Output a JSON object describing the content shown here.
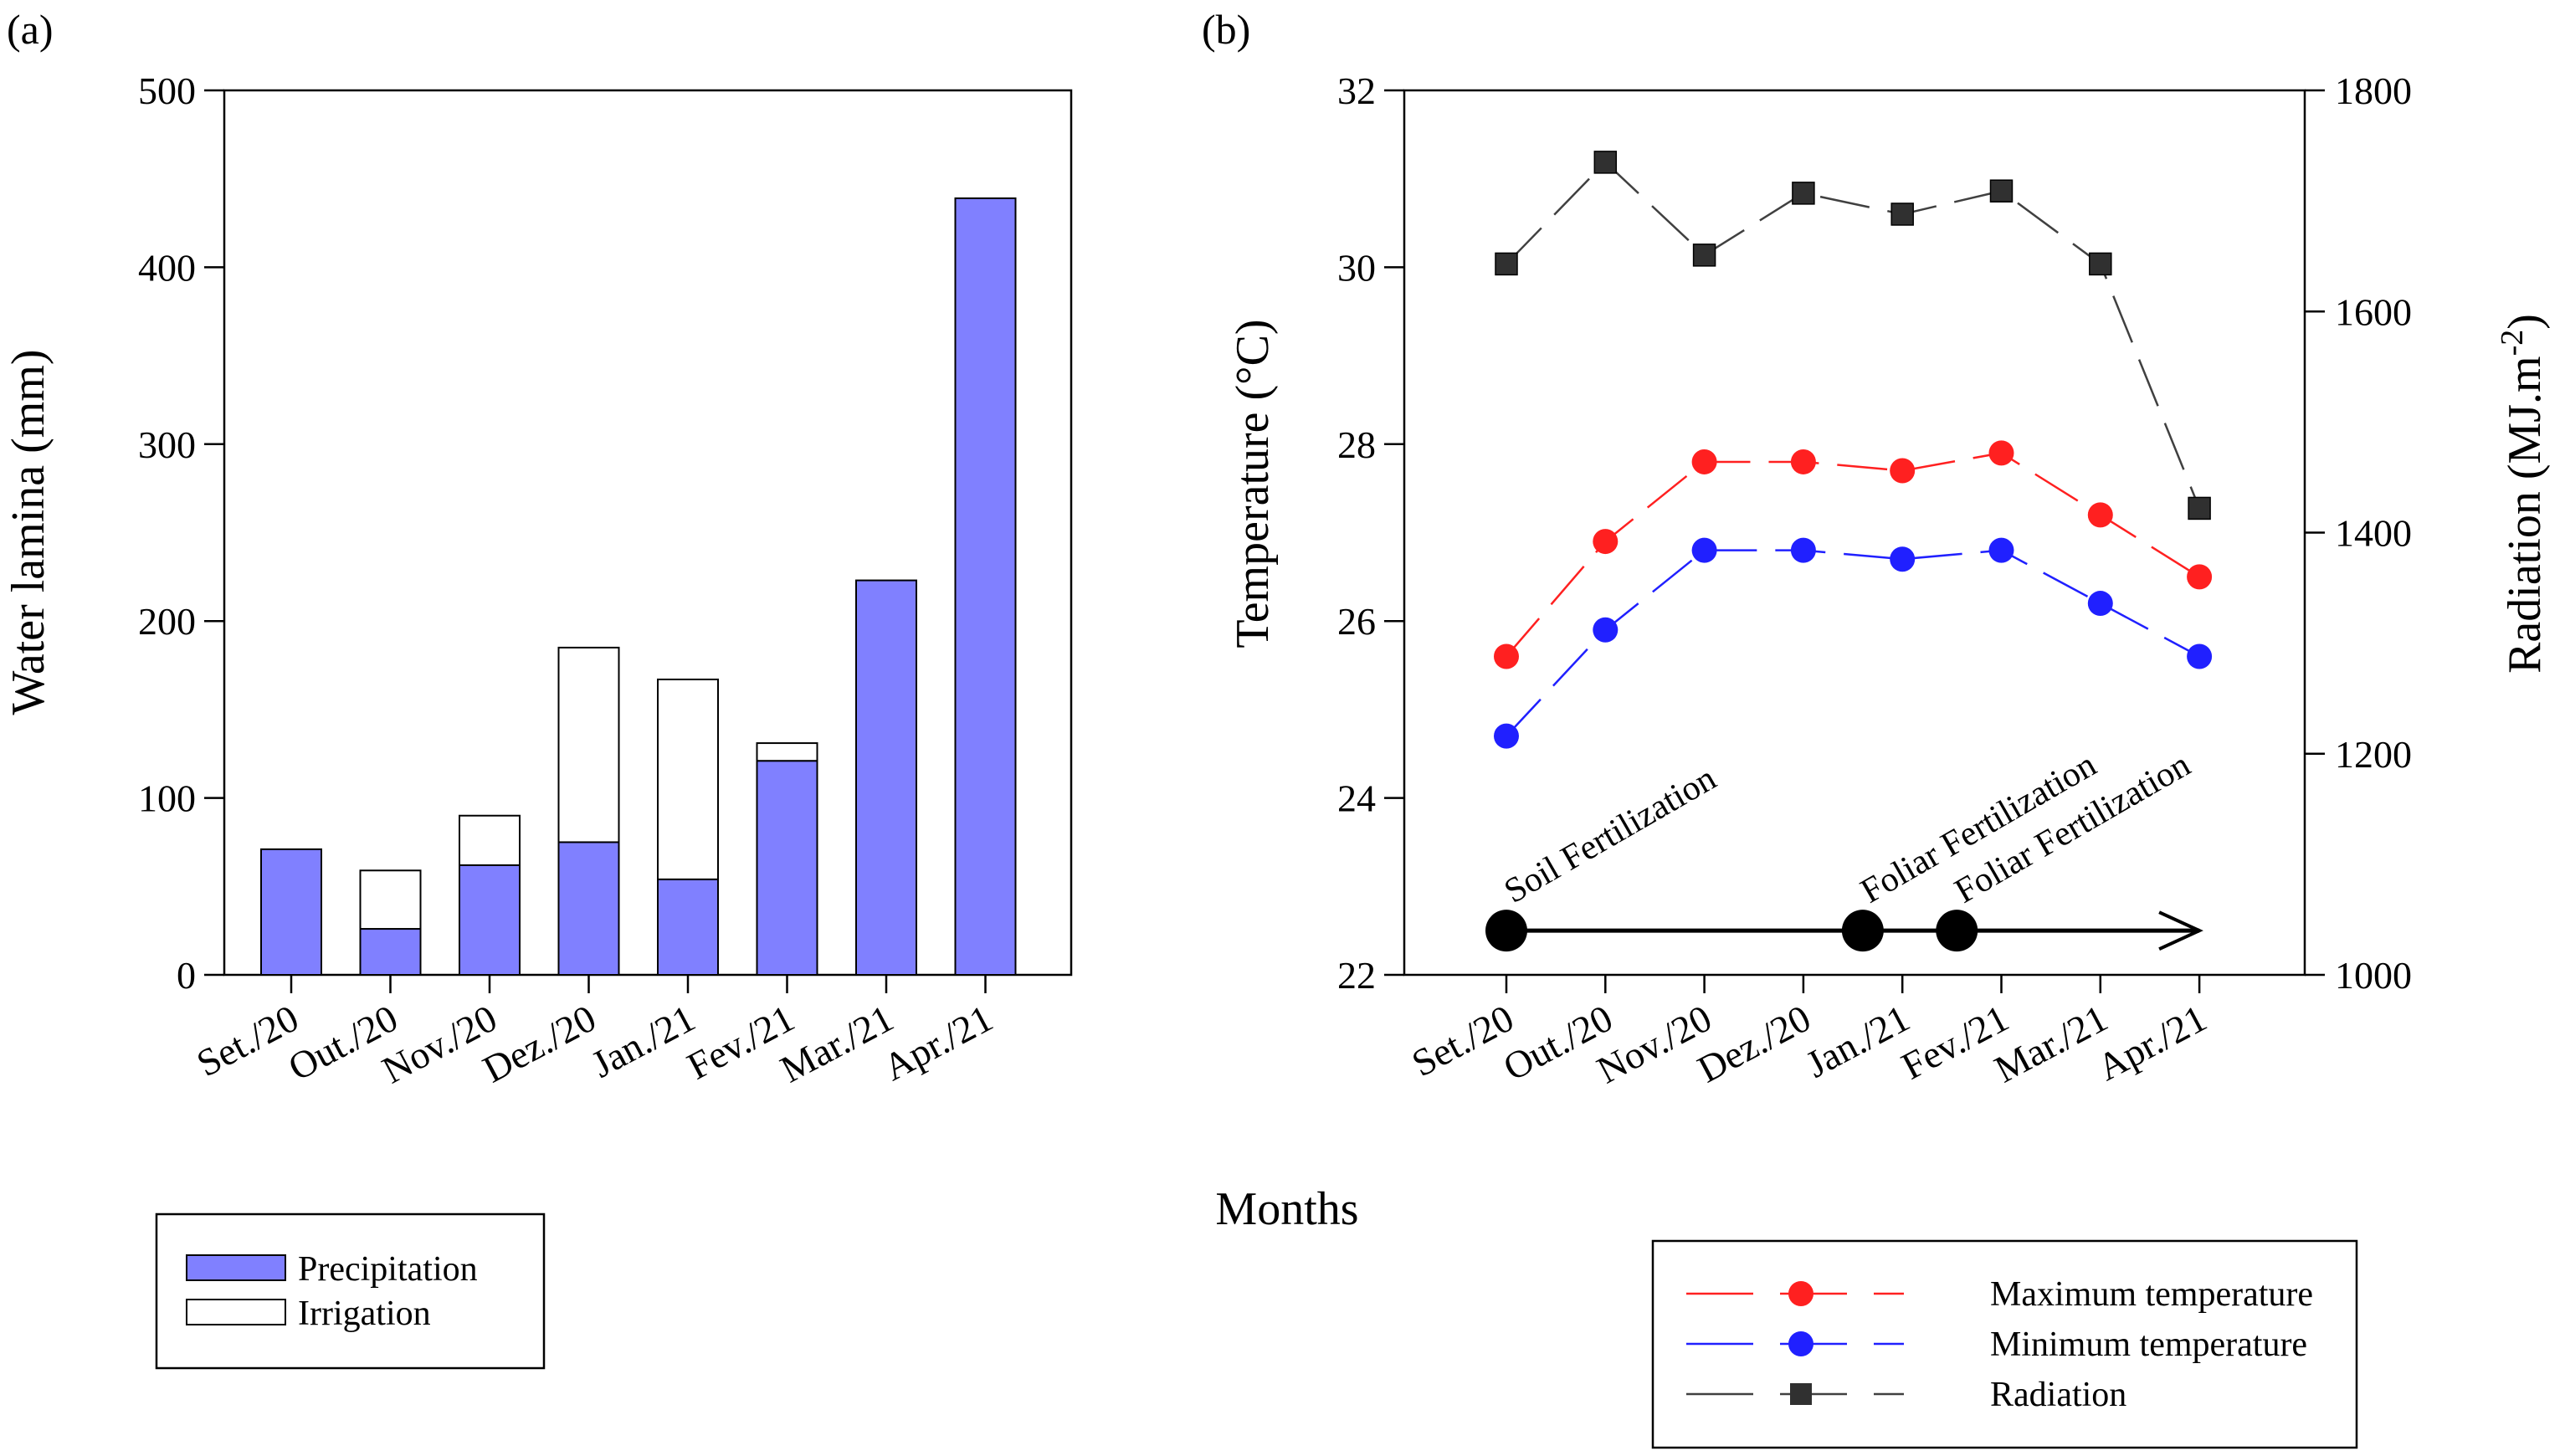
{
  "shared": {
    "xlabel": "Months",
    "categories": [
      "Set./20",
      "Out./20",
      "Nov./20",
      "Dez./20",
      "Jan./21",
      "Fev./21",
      "Mar./21",
      "Apr./21"
    ]
  },
  "chart_data": [
    {
      "panel": "(a)",
      "type": "bar",
      "stacked": true,
      "ylabel": "Water lamina (mm)",
      "ylim": [
        0,
        500
      ],
      "yticks": [
        0,
        100,
        200,
        300,
        400,
        500
      ],
      "categories": [
        "Set./20",
        "Out./20",
        "Nov./20",
        "Dez./20",
        "Jan./21",
        "Fev./21",
        "Mar./21",
        "Apr./21"
      ],
      "series": [
        {
          "name": "Precipitation",
          "color": "#8080ff",
          "values": [
            71,
            26,
            62,
            75,
            54,
            121,
            223,
            439
          ]
        },
        {
          "name": "Irrigation",
          "color": "#ffffff",
          "values": [
            0,
            33,
            28,
            110,
            113,
            10,
            0,
            0
          ]
        }
      ],
      "legend": [
        "Precipitation",
        "Irrigation"
      ]
    },
    {
      "panel": "(b)",
      "type": "line",
      "ylabel": "Temperature (°C)",
      "ylim": [
        22,
        32
      ],
      "yticks": [
        22,
        24,
        26,
        28,
        30,
        32
      ],
      "y2label_main": "Radiation (MJ.m",
      "y2label_sup": "-2",
      "y2label_end": ")",
      "y2lim": [
        1000,
        1800
      ],
      "y2ticks": [
        1000,
        1200,
        1400,
        1600,
        1800
      ],
      "categories": [
        "Set./20",
        "Out./20",
        "Nov./20",
        "Dez./20",
        "Jan./21",
        "Fev./21",
        "Mar./21",
        "Apr./21"
      ],
      "series": [
        {
          "name": "Maximum temperature",
          "axis": "left",
          "color": "#ff2020",
          "marker": "circle",
          "values": [
            25.6,
            26.9,
            27.8,
            27.8,
            27.7,
            27.9,
            27.2,
            26.5
          ]
        },
        {
          "name": "Minimum temperature",
          "axis": "left",
          "color": "#2020ff",
          "marker": "circle",
          "values": [
            24.7,
            25.9,
            26.8,
            26.8,
            26.7,
            26.8,
            26.2,
            25.6
          ]
        },
        {
          "name": "Radiation",
          "axis": "right",
          "color": "#404040",
          "marker": "square",
          "values": [
            1643,
            1735,
            1651,
            1707,
            1688,
            1709,
            1643,
            1422
          ]
        }
      ],
      "timeline": {
        "events": [
          {
            "label": "Soil Fertilization",
            "position": 0
          },
          {
            "label": "Foliar Fertilization",
            "position": 3.6
          },
          {
            "label": "Foliar Fertilization",
            "position": 4.55
          }
        ],
        "end": 7,
        "level": 22.5
      },
      "legend": [
        "Maximum temperature",
        "Minimum temperature",
        "Radiation"
      ]
    }
  ]
}
